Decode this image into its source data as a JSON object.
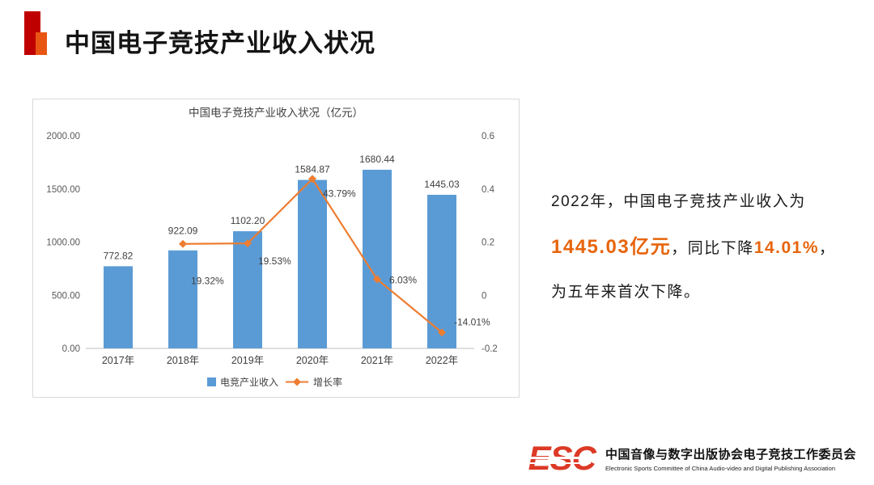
{
  "slide": {
    "title": "中国电子竞技产业收入状况"
  },
  "chart_data": {
    "type": "bar+line",
    "title": "中国电子竞技产业收入状况（亿元）",
    "categories": [
      "2017年",
      "2018年",
      "2019年",
      "2020年",
      "2021年",
      "2022年"
    ],
    "series": [
      {
        "name": "电竞产业收入",
        "type": "bar",
        "axis": "left",
        "color": "#5B9BD5",
        "values": [
          772.82,
          922.09,
          1102.2,
          1584.87,
          1680.44,
          1445.03
        ],
        "labels": [
          "772.82",
          "922.09",
          "1102.20",
          "1584.87",
          "1680.44",
          "1445.03"
        ]
      },
      {
        "name": "增长率",
        "type": "line",
        "axis": "right",
        "color": "#ED7D31",
        "values": [
          null,
          0.1932,
          0.1953,
          0.4379,
          0.0603,
          -0.1401
        ],
        "labels": [
          null,
          "19.32%",
          "19.53%",
          "43.79%",
          "6.03%",
          "-14.01%"
        ]
      }
    ],
    "left_axis": {
      "min": 0,
      "max": 2000,
      "ticks": [
        "0.00",
        "500.00",
        "1000.00",
        "1500.00",
        "2000.00"
      ]
    },
    "right_axis": {
      "min": -0.2,
      "max": 0.6,
      "ticks": [
        "-0.2",
        "0",
        "0.2",
        "0.4",
        "0.6"
      ]
    },
    "legend": [
      "电竞产业收入",
      "增长率"
    ],
    "legend_position": "bottom",
    "grid": false
  },
  "annotation": {
    "line1": "2022年，中国电子竞技产业收入为",
    "highlight_revenue": "1445.03亿元",
    "mid": "，同比下降",
    "highlight_decline": "14.01%",
    "tail": "，",
    "line3": "为五年来首次下降。"
  },
  "footer": {
    "logo_text": "ESC",
    "org_cn": "中国音像与数字出版协会电子竞技工作委员会",
    "org_en": "Electronic Sports Committee of China Audio-video and Digital Publishing Association"
  },
  "colors": {
    "bar": "#5B9BD5",
    "line": "#ED7D31",
    "highlight": "#E7650D",
    "accent_dark": "#C00000",
    "accent_orange": "#E95513"
  }
}
